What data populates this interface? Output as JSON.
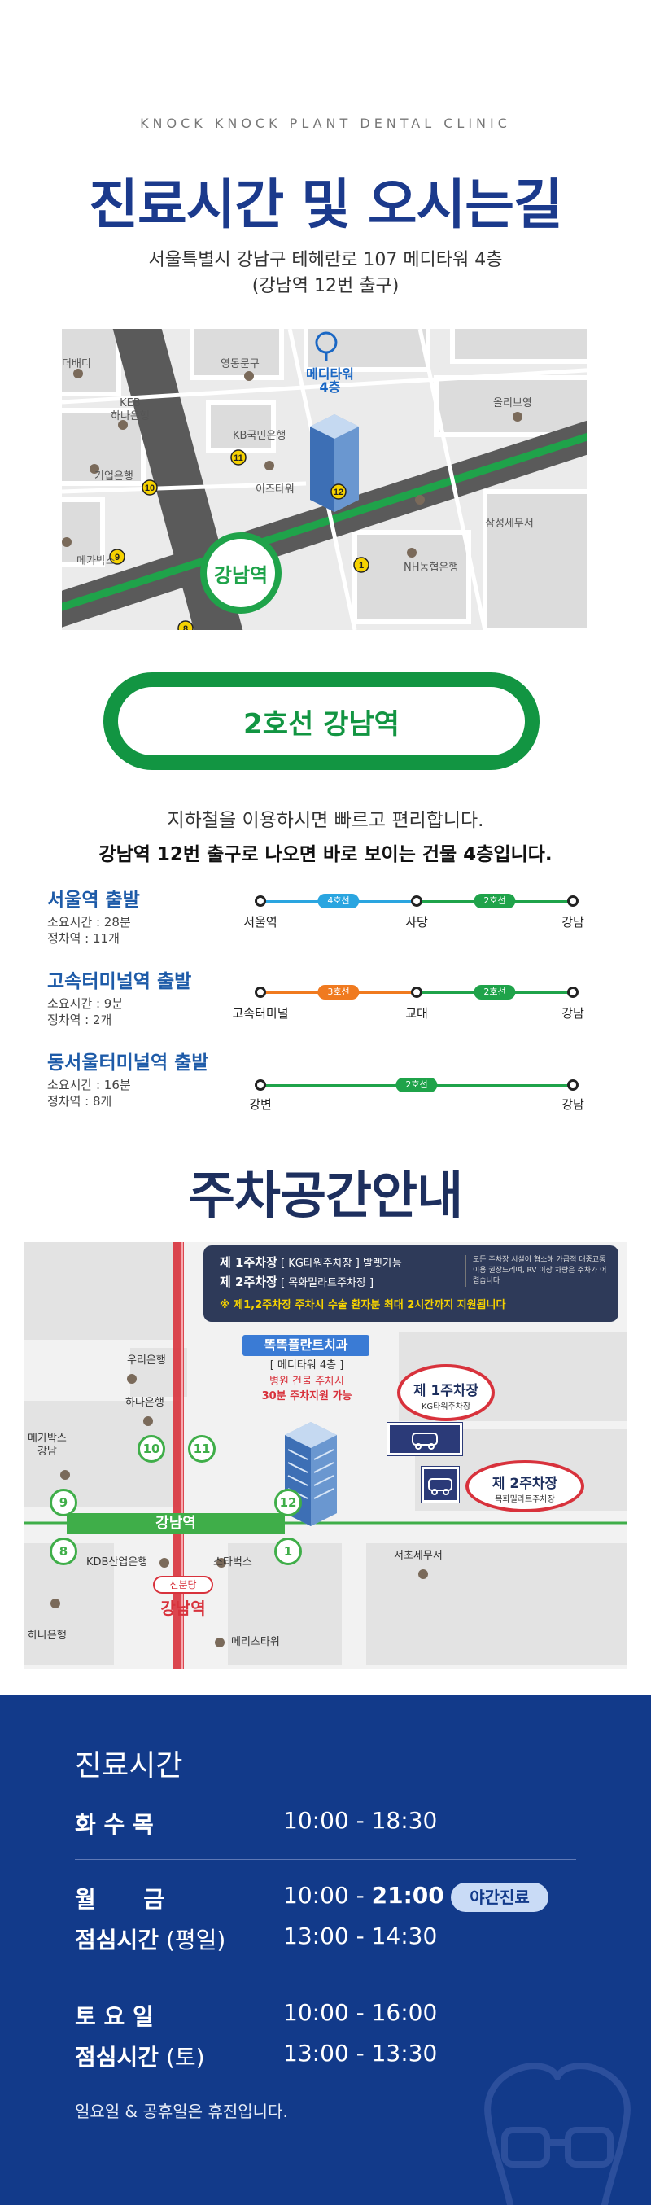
{
  "header": {
    "eyebrow": "KNOCK KNOCK PLANT DENTAL CLINIC",
    "title": "진료시간 및 오시는길",
    "address_line1": "서울특별시 강남구 테헤란로 107 메디타워 4층",
    "address_line2": "(강남역 12번 출구)"
  },
  "map1": {
    "station": "강남역",
    "building": "메디타워\n4층",
    "labels": {
      "daebeo": "더배디",
      "yeongdong": "영동문구",
      "keb": "KEB\n하나은행",
      "kb": "KB국민은행",
      "ibk": "기업은행",
      "izu": "이즈타워",
      "ollibeu": "올리브영",
      "mega": "메가박스",
      "samsung": "삼성세무서",
      "nh": "NH농협은행"
    },
    "exits": [
      "9",
      "10",
      "11",
      "12",
      "1",
      "8"
    ],
    "colors": {
      "green_line": "#1fa34a",
      "road": "#5a5a5a"
    }
  },
  "station_pill": "2호선 강남역",
  "intro": {
    "line1": "지하철을 이용하시면 빠르고 편리합니다.",
    "line2": "강남역 12번 출구로 나오면 바로 보이는 건물 4층입니다."
  },
  "routes": [
    {
      "name": "서울역 출발",
      "time": "소요시간 : 28분",
      "stops_count": "정차역 : 11개",
      "stations": [
        "서울역",
        "사당",
        "강남"
      ],
      "segments": [
        {
          "line": "4호선",
          "color": "#2aa5e0"
        },
        {
          "line": "2호선",
          "color": "#1fa34a"
        }
      ]
    },
    {
      "name": "고속터미널역 출발",
      "time": "소요시간 : 9분",
      "stops_count": "정차역 : 2개",
      "stations": [
        "고속터미널",
        "교대",
        "강남"
      ],
      "segments": [
        {
          "line": "3호선",
          "color": "#f07a1f"
        },
        {
          "line": "2호선",
          "color": "#1fa34a"
        }
      ]
    },
    {
      "name": "동서울터미널역 출발",
      "time": "소요시간 : 16분",
      "stops_count": "정차역 : 8개",
      "stations": [
        "강변",
        "강남"
      ],
      "segments": [
        {
          "line": "2호선",
          "color": "#1fa34a"
        }
      ]
    }
  ],
  "parking": {
    "title": "주차공간안내",
    "lot1": "제 1주차장",
    "lot1_detail": " [ KG타워주차장 ] 발렛가능",
    "lot2": "제 2주차장",
    "lot2_detail": " [ 목화밀라트주차장 ]",
    "note": "모든 주차장 시설이 협소해 가급적 대중교통 이용 권장드리며, RV 이상 차량은 주차가 어렵습니다",
    "highlight": "※ 제1,2주차장 주차시 수술 환자분 최대 2시간까지 지원됩니다",
    "clinic_name": "똑똑플란트치과",
    "clinic_floor": "[ 메디타워 4층 ]",
    "clinic_parking1": "병원 건물 주차시",
    "clinic_parking2": "30분 주차지원 가능",
    "oval1_title": "제 1주차장",
    "oval1_sub": "KG타워주차장",
    "oval2_title": "제 2주차장",
    "oval2_sub": "목화밀라트주차장",
    "station_bar": "강남역",
    "sinbundang": "신분당",
    "gangnam_red": "강남역",
    "labels": {
      "woori": "우리은행",
      "hana_top": "하나은행",
      "mega": "메가박스\n강남",
      "kdb": "KDB산업은행",
      "starbucks": "스타벅스",
      "seocho": "서초세무서",
      "hana_bottom": "하나은행",
      "meritz": "메리츠타워"
    },
    "exit_numbers": [
      "10",
      "11",
      "9",
      "12",
      "8",
      "1"
    ]
  },
  "hours": {
    "title": "진료시간",
    "rows": [
      {
        "label": "화 수 목",
        "time": "10:00 - 18:30"
      },
      {
        "label": "월      금",
        "time_start": "10:00 - ",
        "time_end": "21:00",
        "badge": "야간진료"
      },
      {
        "label": "점심시간",
        "label_sub": " (평일)",
        "time": "13:00 - 14:30"
      },
      {
        "label": "토 요 일",
        "time": "10:00 - 16:00"
      },
      {
        "label": "점심시간",
        "label_sub": " (토)",
        "time": "13:00 - 13:30"
      }
    ],
    "closed_note": "일요일 & 공휴일은 휴진입니다.",
    "colors": {
      "background": "#123a8a",
      "badge": "#c9dbf6"
    }
  }
}
